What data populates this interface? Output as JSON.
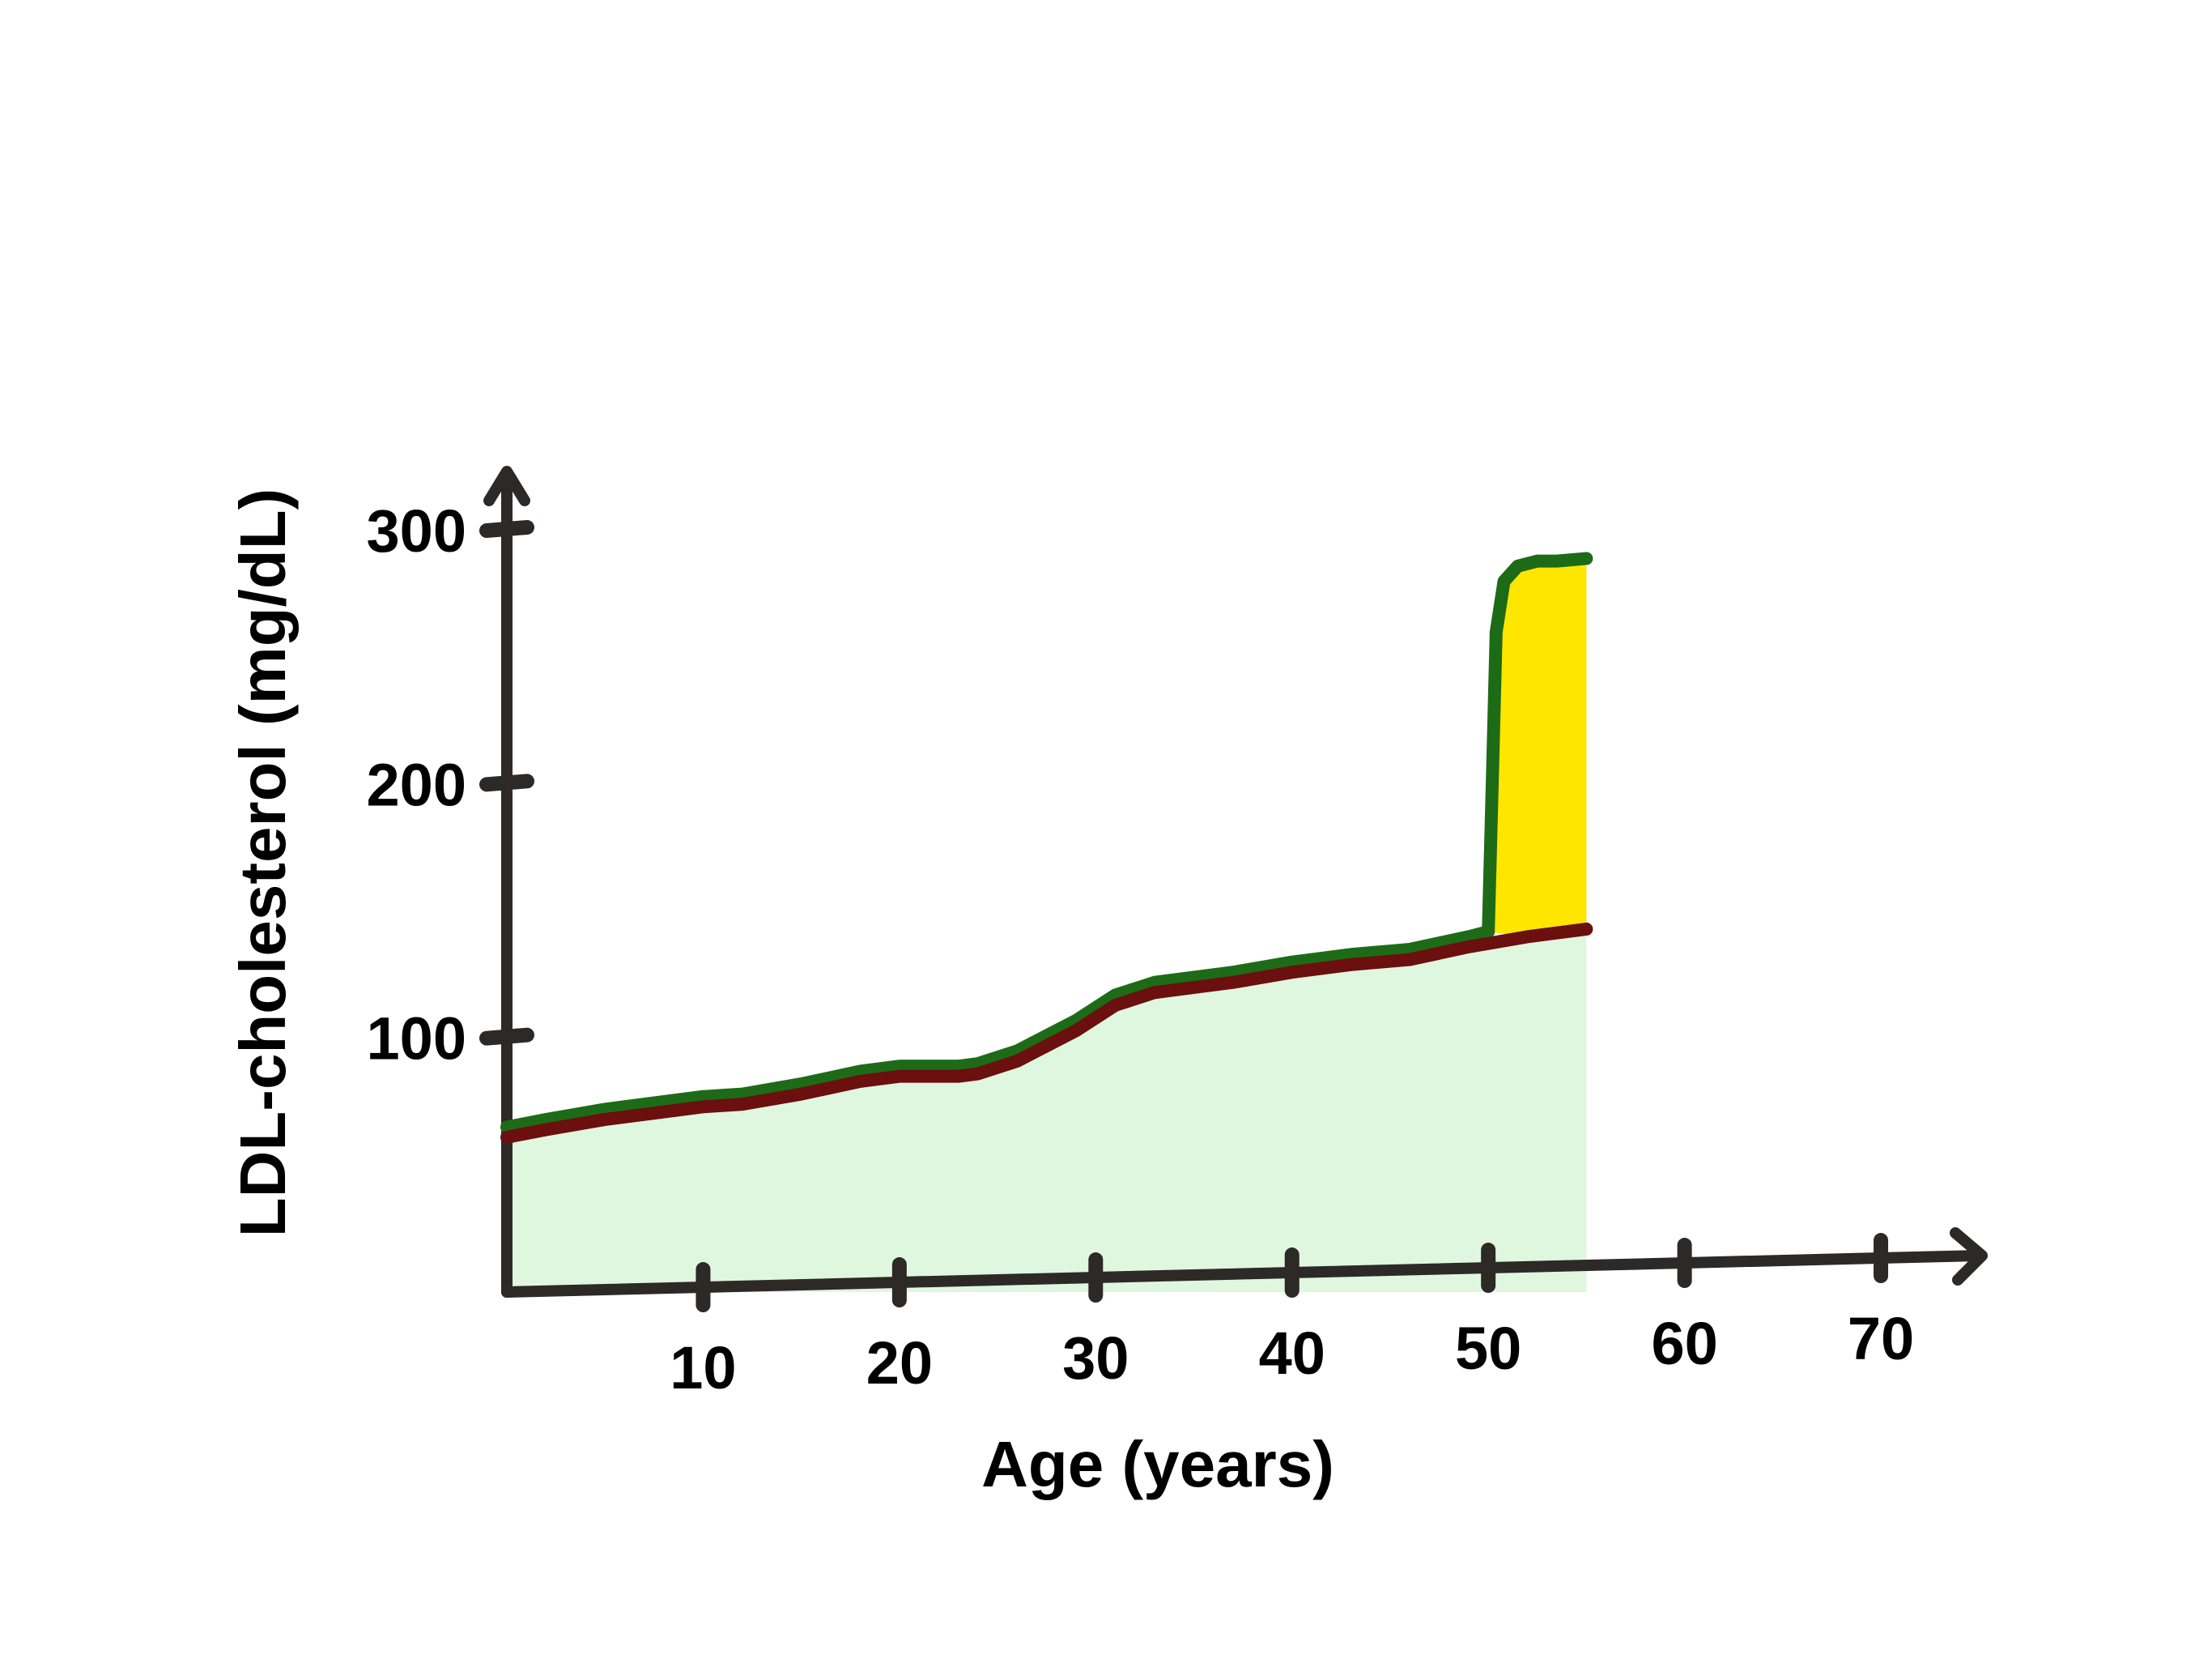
{
  "chart_data": {
    "type": "area",
    "xlabel": "Age (years)",
    "ylabel": "LDL-cholesterol (mg/dL)",
    "xlim": [
      0,
      74
    ],
    "ylim": [
      0,
      300
    ],
    "x_ticks": [
      10,
      20,
      30,
      40,
      50,
      60,
      70
    ],
    "y_ticks": [
      100,
      200,
      300
    ],
    "grid": false,
    "legend": "none",
    "series": [
      {
        "x": [
          0,
          2,
          5,
          10,
          12,
          15,
          18,
          20,
          23,
          24,
          26,
          29,
          31,
          33,
          35,
          37,
          40,
          43,
          46,
          49,
          50
        ],
        "values": [
          65,
          68,
          72,
          77,
          78,
          82,
          87,
          89,
          89,
          90,
          95,
          107,
          117,
          122,
          124,
          126,
          130,
          133,
          135,
          140,
          142
        ],
        "color": "#1e6b17"
      },
      {
        "x": [
          50,
          50.2,
          50.4,
          50.8,
          51.5,
          52.5,
          53.5,
          55
        ],
        "values": [
          142,
          200,
          260,
          280,
          286,
          288,
          288,
          289
        ],
        "color": "#1e6b17"
      },
      {
        "x": [
          0,
          2,
          5,
          10,
          12,
          15,
          18,
          20,
          23,
          24,
          26,
          29,
          31,
          33,
          35,
          37,
          40,
          43,
          46,
          49,
          52,
          55
        ],
        "values": [
          61,
          64,
          68,
          73,
          74,
          78,
          83,
          85,
          85,
          86,
          91,
          103,
          113,
          118,
          120,
          122,
          126,
          129,
          131,
          136,
          140,
          143
        ],
        "color": "#6b0f0f"
      }
    ],
    "fills": {
      "baseline_area": "#dff7df",
      "excess_area": "#ffe600"
    }
  }
}
